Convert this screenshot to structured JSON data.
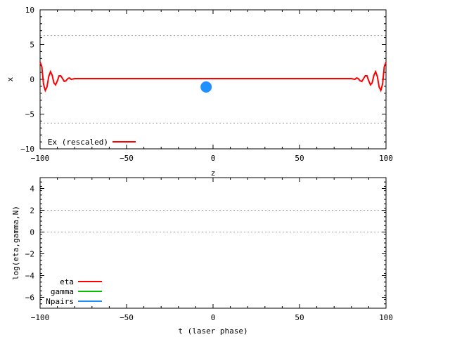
{
  "chart_data": [
    {
      "type": "line",
      "xlabel": "z",
      "ylabel": "x",
      "xlim": [
        -100,
        100
      ],
      "ylim": [
        -10,
        10
      ],
      "xticks": [
        -100,
        -50,
        0,
        50,
        100
      ],
      "yticks": [
        -10,
        -5,
        0,
        5,
        10
      ],
      "xtick_labels": [
        "−100",
        "−50",
        "0",
        "50",
        "100"
      ],
      "ytick_labels": [
        "−10",
        "−5",
        "0",
        "5",
        "10"
      ],
      "dotted_y_lines": [
        6.3,
        -6.3
      ],
      "legend_position": "bottom-left",
      "series": [
        {
          "name": "Ex (rescaled)",
          "color": "#ff0000",
          "x": [
            -100,
            -99,
            -98,
            -97,
            -96,
            -95,
            -94,
            -93,
            -92,
            -91,
            -90,
            -89,
            -88,
            -87,
            -86,
            -85,
            -84,
            -83,
            -82,
            -80,
            -75,
            -50,
            0,
            50,
            75,
            80,
            82,
            83,
            84,
            85,
            86,
            87,
            88,
            89,
            90,
            91,
            92,
            93,
            94,
            95,
            96,
            97,
            98,
            99,
            100
          ],
          "y": [
            2.5,
            1.8,
            -0.7,
            -1.6,
            -1.1,
            0.4,
            1.1,
            0.6,
            -0.5,
            -0.8,
            -0.2,
            0.5,
            0.5,
            0.1,
            -0.3,
            -0.2,
            0.1,
            0.2,
            0.0,
            0.1,
            0.1,
            0.1,
            0.1,
            0.1,
            0.1,
            0.1,
            0.0,
            0.2,
            0.1,
            -0.2,
            -0.3,
            0.1,
            0.5,
            0.5,
            -0.2,
            -0.8,
            -0.5,
            0.6,
            1.1,
            0.4,
            -1.1,
            -1.6,
            -0.7,
            1.8,
            2.5
          ]
        }
      ],
      "markers": [
        {
          "x": -4,
          "y": -1.1,
          "color": "#1e90ff"
        }
      ]
    },
    {
      "type": "line",
      "xlabel": "t (laser phase)",
      "ylabel": "log(eta,gamma,N)",
      "xlim": [
        -100,
        100
      ],
      "ylim": [
        -7,
        5
      ],
      "xticks": [
        -100,
        -50,
        0,
        50,
        100
      ],
      "yticks": [
        -6,
        -4,
        -2,
        0,
        2,
        4
      ],
      "xtick_labels": [
        "−100",
        "−50",
        "0",
        "50",
        "100"
      ],
      "ytick_labels": [
        "−6",
        "−4",
        "−2",
        "0",
        "2",
        "4"
      ],
      "dotted_y_lines": [
        2,
        0
      ],
      "legend_position": "bottom-left",
      "series": [
        {
          "name": "eta",
          "color": "#ff0000",
          "x": [],
          "y": []
        },
        {
          "name": "gamma",
          "color": "#00c000",
          "x": [],
          "y": []
        },
        {
          "name": "Npairs",
          "color": "#1e90ff",
          "x": [],
          "y": []
        }
      ]
    }
  ]
}
